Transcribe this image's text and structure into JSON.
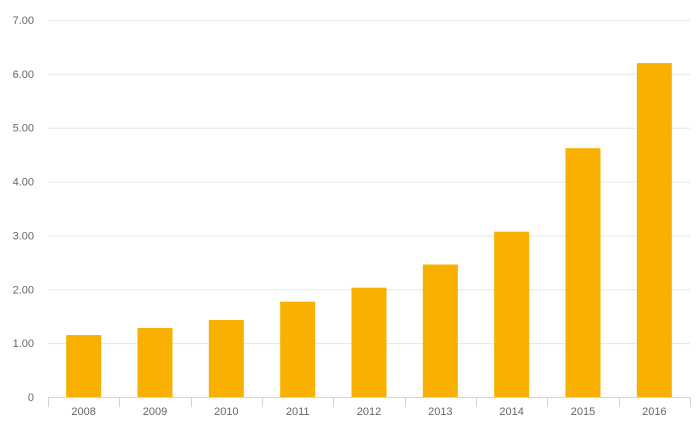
{
  "chart_data": {
    "type": "bar",
    "title": "",
    "xlabel": "",
    "ylabel": "",
    "categories": [
      "2008",
      "2009",
      "2010",
      "2011",
      "2012",
      "2013",
      "2014",
      "2015",
      "2016"
    ],
    "values": [
      1.15,
      1.28,
      1.43,
      1.77,
      2.03,
      2.46,
      3.07,
      4.62,
      6.2
    ],
    "ylim": [
      0,
      7
    ],
    "yticks": [
      "0",
      "1.00",
      "2.00",
      "3.00",
      "4.00",
      "5.00",
      "6.00",
      "7.00"
    ],
    "grid": true,
    "legend": "none",
    "colors": {
      "bar": "#f9b000",
      "grid": "#e6e6e6",
      "axis": "#ccd6eb",
      "label": "#666666"
    }
  }
}
